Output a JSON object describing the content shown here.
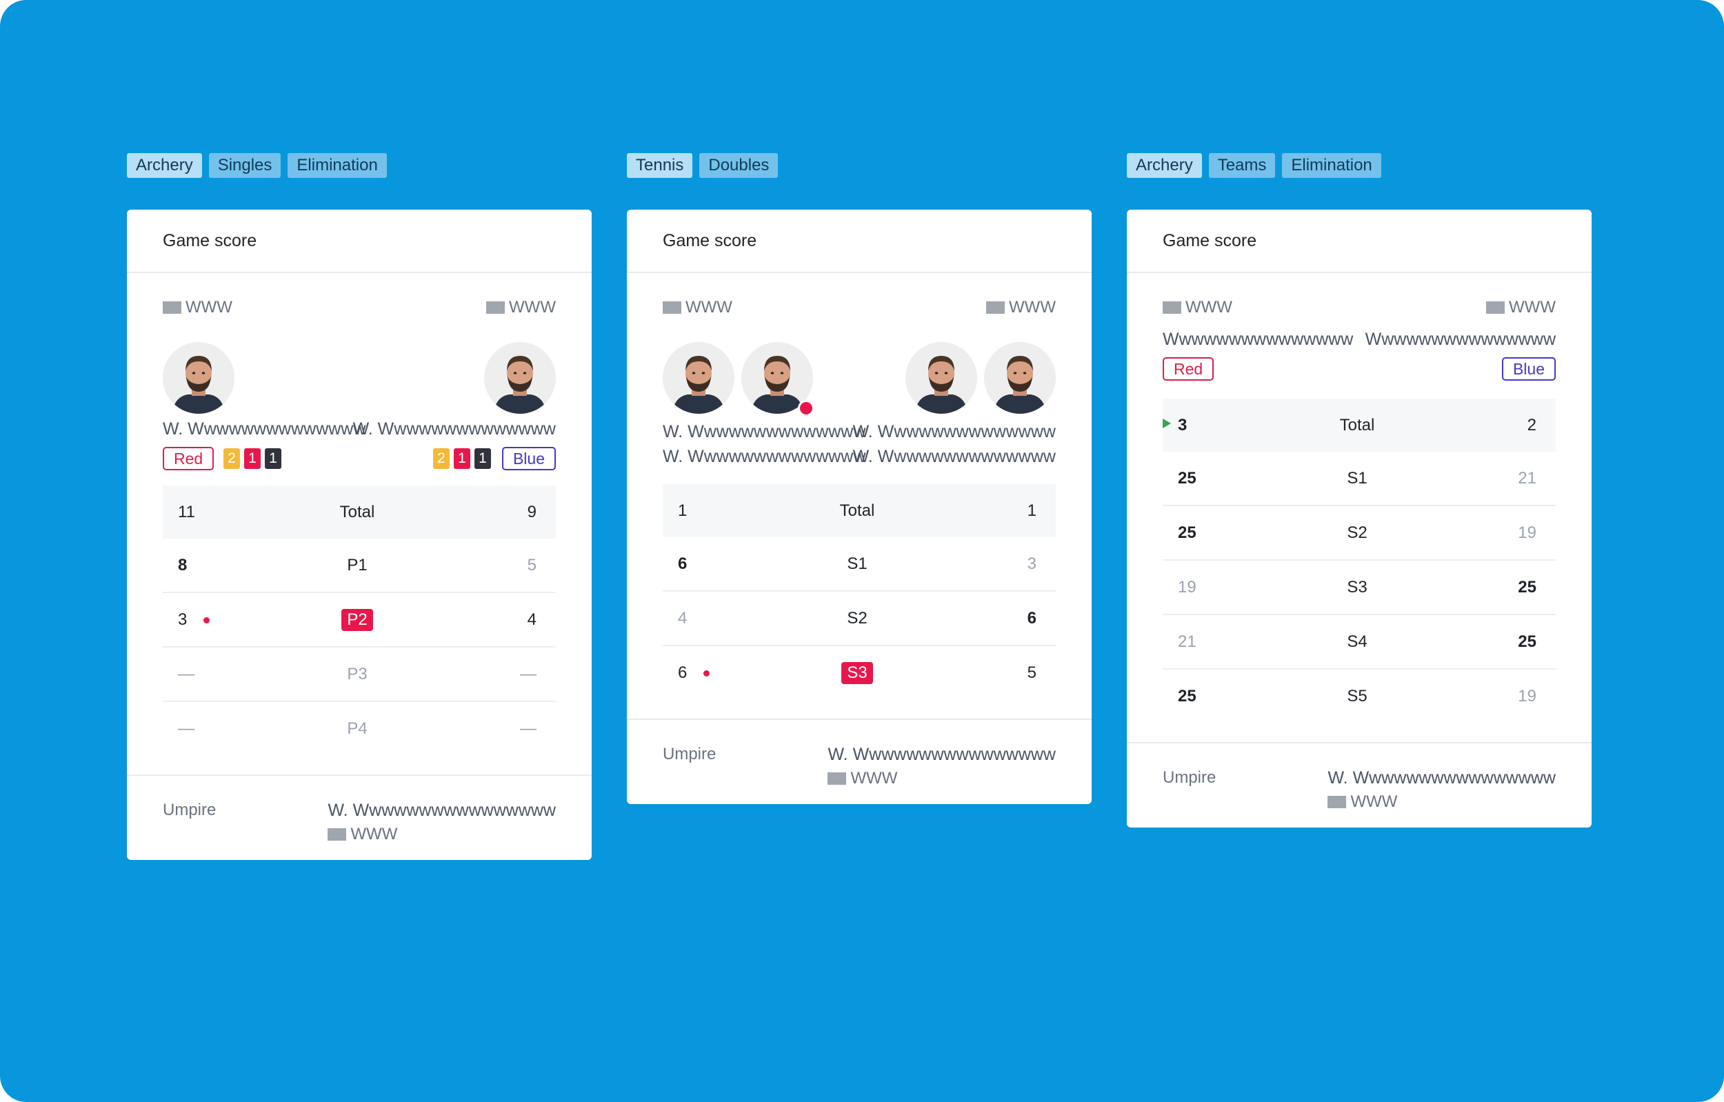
{
  "cards": [
    {
      "tags": [
        "Archery",
        "Singles",
        "Elimination"
      ],
      "title": "Game score",
      "left_flag": "WWW",
      "right_flag": "WWW",
      "left_names": [
        "W. Wwwwwwwwwwwwww"
      ],
      "right_names": [
        "W. Wwwwwwwwwwwwww"
      ],
      "left_team": "Red",
      "right_team": "Blue",
      "left_penalty_cards": [
        "2",
        "1",
        "1"
      ],
      "right_penalty_cards": [
        "2",
        "1",
        "1"
      ],
      "rows": [
        {
          "a": "11",
          "label": "Total",
          "b": "9"
        },
        {
          "a": "8",
          "label": "P1",
          "b": "5"
        },
        {
          "a": "3",
          "label": "P2",
          "b": "4"
        },
        {
          "a": "—",
          "label": "P3",
          "b": "—"
        },
        {
          "a": "—",
          "label": "P4",
          "b": "—"
        }
      ],
      "umpire_label": "Umpire",
      "umpire_name": "W. Wwwwwwwwwwwwwwww",
      "umpire_flag": "WWW"
    },
    {
      "tags": [
        "Tennis",
        "Doubles"
      ],
      "title": "Game score",
      "left_flag": "WWW",
      "right_flag": "WWW",
      "left_names": [
        "W. Wwwwwwwwwwwwww",
        "W. Wwwwwwwwwwwwww"
      ],
      "right_names": [
        "W. Wwwwwwwwwwwwww",
        "W. Wwwwwwwwwwwwww"
      ],
      "rows": [
        {
          "a": "1",
          "label": "Total",
          "b": "1"
        },
        {
          "a": "6",
          "label": "S1",
          "b": "3"
        },
        {
          "a": "4",
          "label": "S2",
          "b": "6"
        },
        {
          "a": "6",
          "label": "S3",
          "b": "5"
        }
      ],
      "umpire_label": "Umpire",
      "umpire_name": "W. Wwwwwwwwwwwwwwww",
      "umpire_flag": "WWW"
    },
    {
      "tags": [
        "Archery",
        "Teams",
        "Elimination"
      ],
      "title": "Game score",
      "left_flag": "WWW",
      "right_flag": "WWW",
      "left_names": [
        "Wwwwwwwwwwwwwww"
      ],
      "right_names": [
        "Wwwwwwwwwwwwwww"
      ],
      "left_team": "Red",
      "right_team": "Blue",
      "rows": [
        {
          "a": "3",
          "label": "Total",
          "b": "2"
        },
        {
          "a": "25",
          "label": "S1",
          "b": "21"
        },
        {
          "a": "25",
          "label": "S2",
          "b": "19"
        },
        {
          "a": "19",
          "label": "S3",
          "b": "25"
        },
        {
          "a": "21",
          "label": "S4",
          "b": "25"
        },
        {
          "a": "25",
          "label": "S5",
          "b": "19"
        }
      ],
      "umpire_label": "Umpire",
      "umpire_name": "W. Wwwwwwwwwwwwwwww",
      "umpire_flag": "WWW"
    }
  ],
  "colors": {
    "background": "#0897DD",
    "red": "#E11D48",
    "blue": "#4338CA",
    "serve_dot": "#E8174B",
    "leader_arrow": "#2FA84F"
  }
}
